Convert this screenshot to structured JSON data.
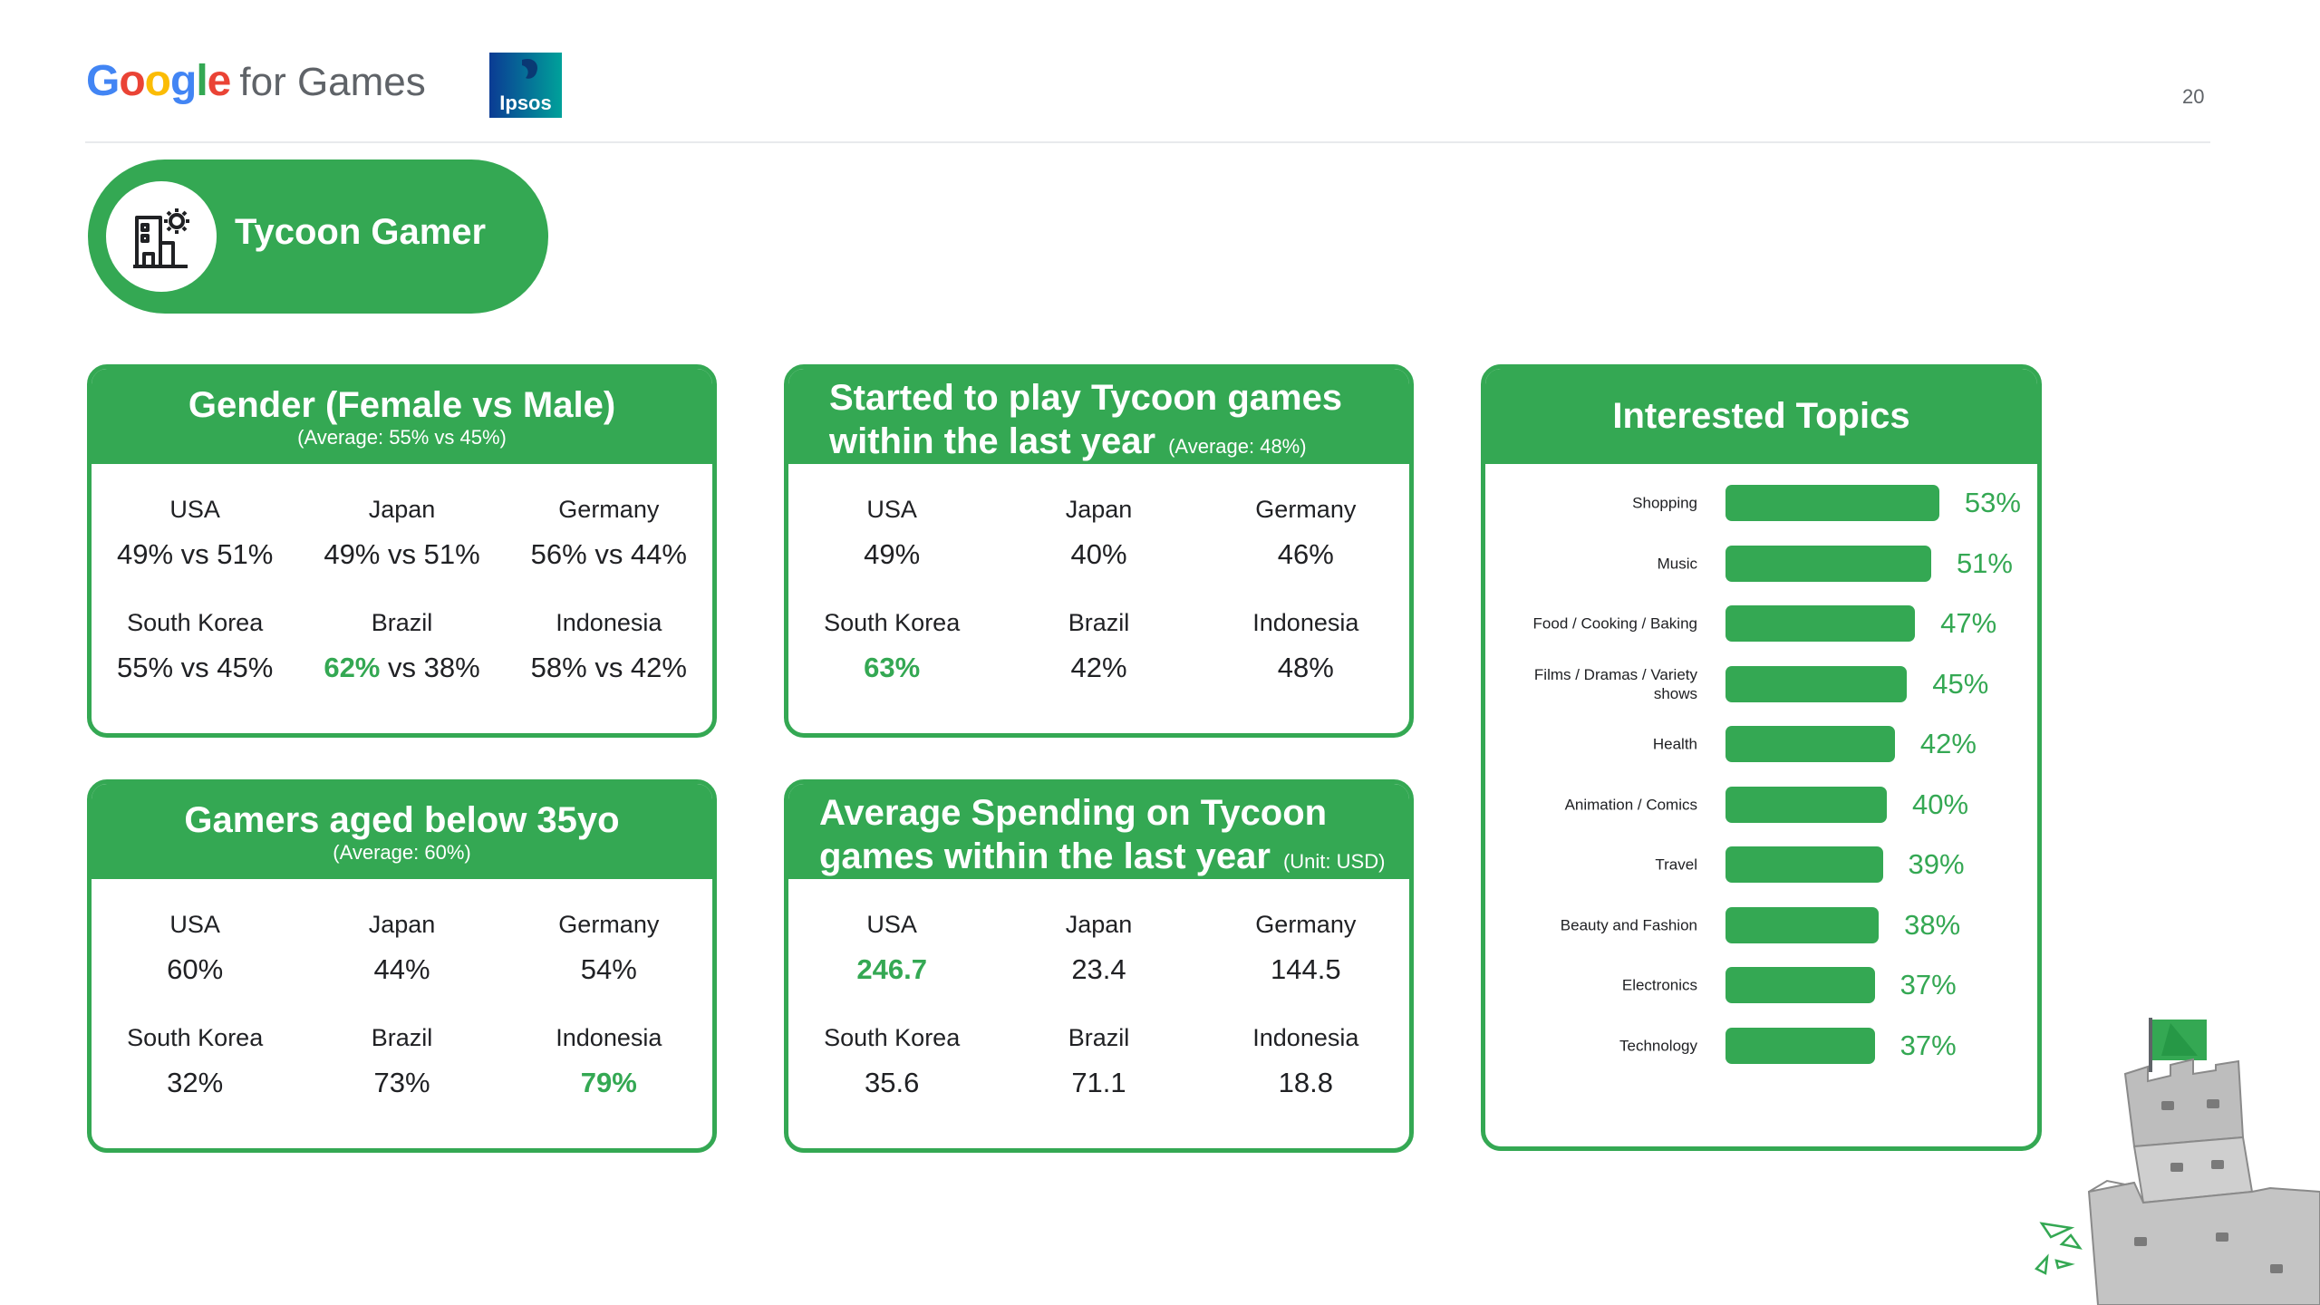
{
  "header": {
    "brand_google": "Google",
    "brand_suffix": "for Games",
    "partner_logo": "Ipsos",
    "page_number": "20"
  },
  "persona": {
    "title": "Tycoon Gamer",
    "icon": "building-gear-icon"
  },
  "gender_card": {
    "title": "Gender (Female vs Male)",
    "subtitle": "(Average: 55% vs  45%)",
    "rows": [
      [
        {
          "country": "USA",
          "value": "49% vs 51%"
        },
        {
          "country": "Japan",
          "value": "49% vs 51%"
        },
        {
          "country": "Germany",
          "value": "56% vs 44%"
        }
      ],
      [
        {
          "country": "South Korea",
          "value": "55% vs 45%"
        },
        {
          "country": "Brazil",
          "value_highlight": "62%",
          "value_rest": " vs 38%"
        },
        {
          "country": "Indonesia",
          "value": "58% vs 42%"
        }
      ]
    ]
  },
  "started_card": {
    "title_line1": "Started to play Tycoon games",
    "title_line2": "within the last year",
    "subtitle": "(Average: 48%)",
    "rows": [
      [
        {
          "country": "USA",
          "value": "49%"
        },
        {
          "country": "Japan",
          "value": "40%"
        },
        {
          "country": "Germany",
          "value": "46%"
        }
      ],
      [
        {
          "country": "South Korea",
          "value": "63%"
        },
        {
          "country": "Brazil",
          "value": "42%"
        },
        {
          "country": "Indonesia",
          "value": "48%"
        }
      ]
    ]
  },
  "age_card": {
    "title": "Gamers aged below 35yo",
    "subtitle": "(Average: 60%)",
    "rows": [
      [
        {
          "country": "USA",
          "value": "60%"
        },
        {
          "country": "Japan",
          "value": "44%"
        },
        {
          "country": "Germany",
          "value": "54%"
        }
      ],
      [
        {
          "country": "South Korea",
          "value": "32%"
        },
        {
          "country": "Brazil",
          "value": "73%"
        },
        {
          "country": "Indonesia",
          "value": "79%"
        }
      ]
    ]
  },
  "spending_card": {
    "title_line1": "Average Spending on Tycoon",
    "title_line2": "games within the last year",
    "subtitle": "(Unit: USD)",
    "rows": [
      [
        {
          "country": "USA",
          "value": "246.7"
        },
        {
          "country": "Japan",
          "value": "23.4"
        },
        {
          "country": "Germany",
          "value": "144.5"
        }
      ],
      [
        {
          "country": "South Korea",
          "value": "35.6"
        },
        {
          "country": "Brazil",
          "value": "71.1"
        },
        {
          "country": "Indonesia",
          "value": "18.8"
        }
      ]
    ]
  },
  "topics_card": {
    "title": "Interested Topics"
  },
  "chart_data": {
    "type": "bar",
    "orientation": "horizontal",
    "title": "Interested Topics",
    "categories": [
      "Shopping",
      "Music",
      "Food / Cooking / Baking",
      "Films / Dramas / Variety shows",
      "Health",
      "Animation / Comics",
      "Travel",
      "Beauty and Fashion",
      "Electronics",
      "Technology"
    ],
    "values": [
      53,
      51,
      47,
      45,
      42,
      40,
      39,
      38,
      37,
      37
    ],
    "labels": [
      "53%",
      "51%",
      "47%",
      "45%",
      "42%",
      "40%",
      "39%",
      "38%",
      "37%",
      "37%"
    ],
    "unit": "%",
    "xlim": [
      0,
      100
    ],
    "bar_color": "#34a853"
  },
  "colors": {
    "accent": "#34a853",
    "text": "#202124"
  }
}
